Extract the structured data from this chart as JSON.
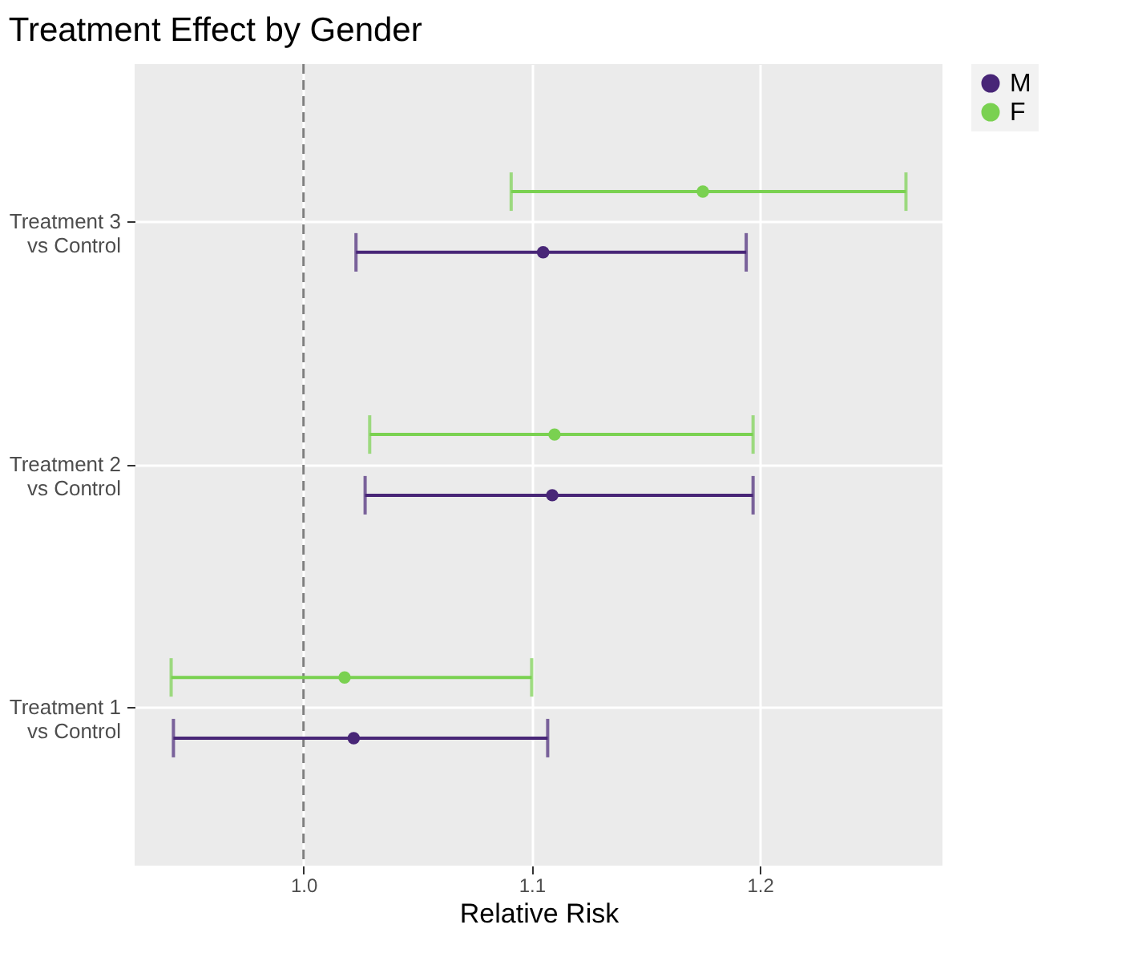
{
  "chart_data": {
    "type": "scatter",
    "orientation": "horizontal",
    "title": "Treatment Effect by Gender",
    "xlabel": "Relative Risk",
    "categories": [
      "Treatment 3\nvs Control",
      "Treatment 2\nvs Control",
      "Treatment 1\nvs Control"
    ],
    "series": [
      {
        "name": "M",
        "color": "#482677",
        "values": [
          1.105,
          1.109,
          1.022
        ],
        "errors": [
          [
            1.023,
            1.194
          ],
          [
            1.027,
            1.197
          ],
          [
            0.943,
            1.107
          ]
        ]
      },
      {
        "name": "F",
        "color": "#7ad151",
        "values": [
          1.175,
          1.11,
          1.018
        ],
        "errors": [
          [
            1.091,
            1.264
          ],
          [
            1.029,
            1.197
          ],
          [
            0.942,
            1.1
          ]
        ]
      }
    ],
    "xlim": [
      0.926,
      1.28
    ],
    "xticks": [
      {
        "value": 1.0,
        "label": "1.0"
      },
      1.1,
      1.2
    ],
    "ref_lines": [
      {
        "axis": "x",
        "value": 1.0,
        "color": "#7f7f7f",
        "line_style": "dashed"
      }
    ],
    "grid": true,
    "legend": "right",
    "marker": "circle"
  }
}
